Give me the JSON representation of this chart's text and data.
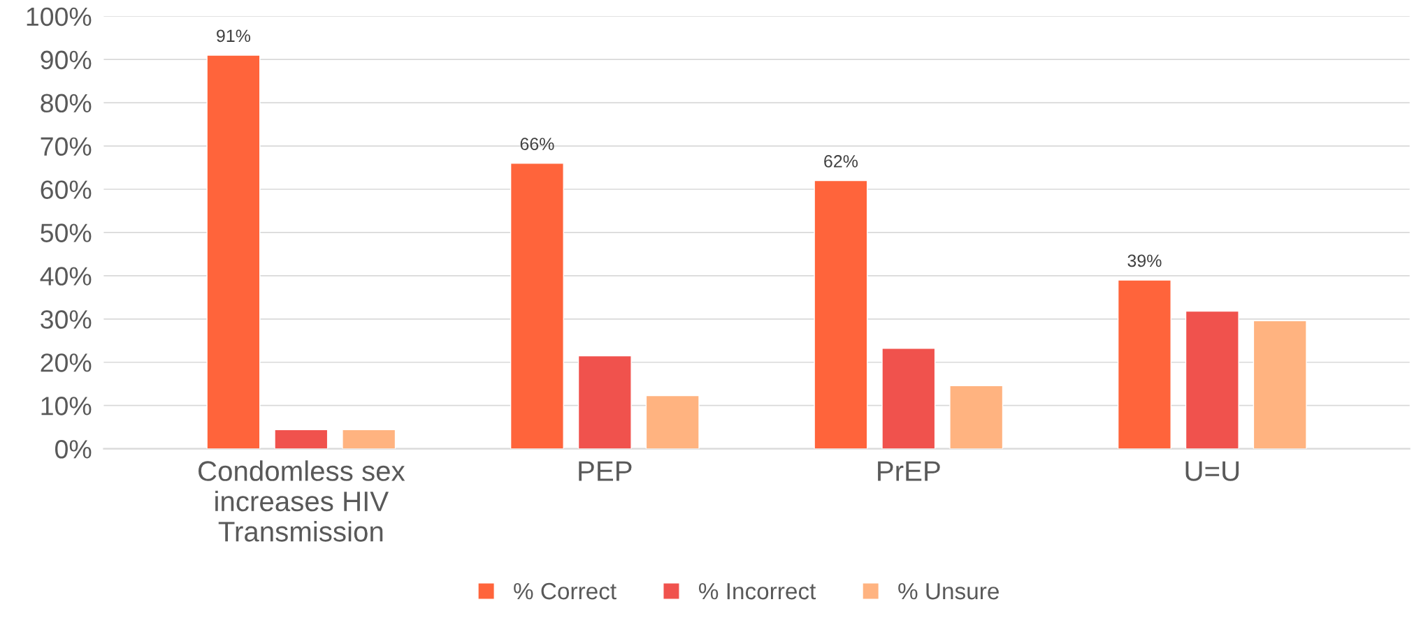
{
  "chart_data": {
    "type": "bar",
    "categories": [
      "Condomless sex\nincreases HIV\nTransmission",
      "PEP",
      "PrEP",
      "U=U"
    ],
    "series": [
      {
        "name": "% Correct",
        "color": "#ff643b",
        "values": [
          91,
          66,
          62,
          39
        ],
        "value_labels": [
          "91%",
          "66%",
          "62%",
          "39%"
        ]
      },
      {
        "name": "% Incorrect",
        "color": "#f0524d",
        "values": [
          4.4,
          21.5,
          23.2,
          31.8
        ]
      },
      {
        "name": "% Unsure",
        "color": "#ffb380",
        "values": [
          4.4,
          12.3,
          14.6,
          29.6
        ]
      }
    ],
    "ylim": [
      0,
      100
    ],
    "yticks": [
      {
        "value": 0,
        "label": "0%"
      },
      {
        "value": 10,
        "label": "10%"
      },
      {
        "value": 20,
        "label": "20%"
      },
      {
        "value": 30,
        "label": "30%"
      },
      {
        "value": 40,
        "label": "40%"
      },
      {
        "value": 50,
        "label": "50%"
      },
      {
        "value": 60,
        "label": "60%"
      },
      {
        "value": 70,
        "label": "70%"
      },
      {
        "value": 80,
        "label": "80%"
      },
      {
        "value": 90,
        "label": "90%"
      },
      {
        "value": 100,
        "label": "100%"
      }
    ],
    "grid": "y",
    "legend": "bottom"
  }
}
